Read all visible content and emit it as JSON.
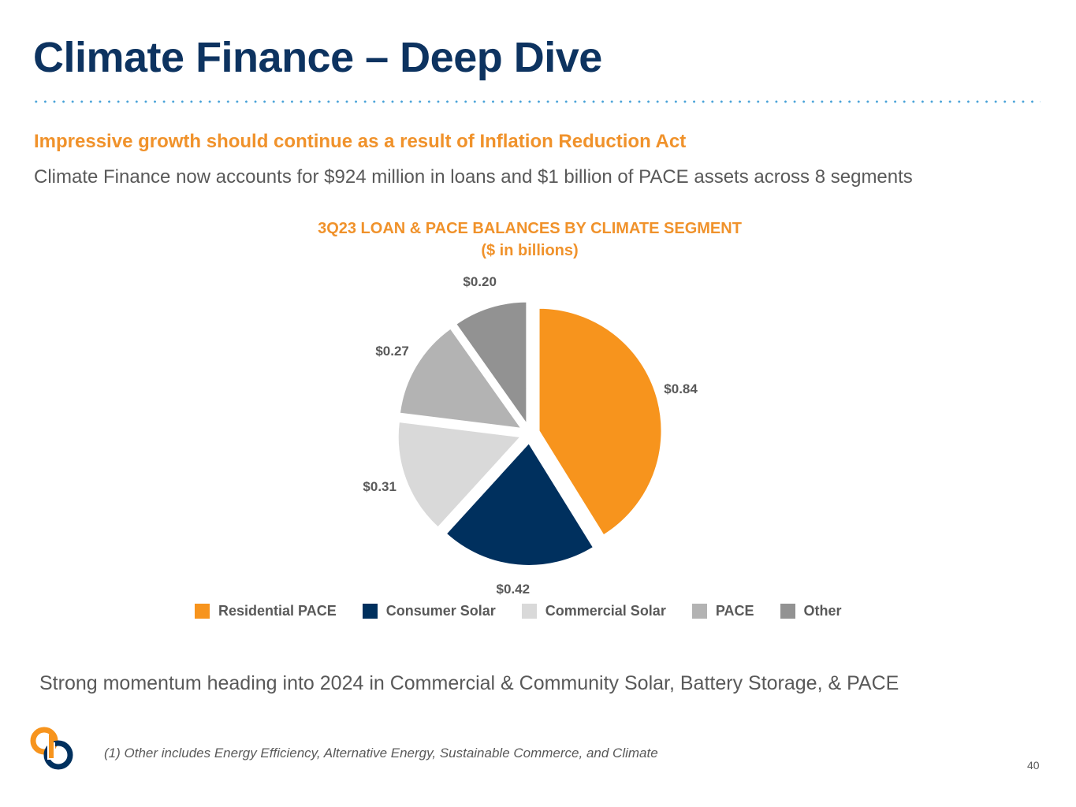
{
  "slide": {
    "title": "Climate Finance – Deep Dive",
    "subtitle": "Impressive growth should continue as a result of Inflation Reduction Act",
    "lead": "Climate Finance now accounts for $924 million in loans and $1 billion of PACE assets across 8 segments",
    "closing": "Strong momentum heading into 2024 in Commercial & Community Solar, Battery Storage, & PACE",
    "footnote": "(1) Other includes Energy Efficiency, Alternative Energy, Sustainable Commerce, and Climate",
    "page_number": "40"
  },
  "chart_data": {
    "type": "pie",
    "title": "3Q23 LOAN & PACE BALANCES BY CLIMATE SEGMENT",
    "subtitle": "($ in billions)",
    "legend_position": "bottom",
    "slices": [
      {
        "name": "Residential PACE",
        "value": 0.84,
        "label": "$0.84",
        "color": "#f7941d"
      },
      {
        "name": "Consumer Solar",
        "value": 0.42,
        "label": "$0.42",
        "color": "#00305e"
      },
      {
        "name": "Commercial Solar",
        "value": 0.31,
        "label": "$0.31",
        "color": "#d9d9d9"
      },
      {
        "name": "PACE",
        "value": 0.27,
        "label": "$0.27",
        "color": "#b3b3b3"
      },
      {
        "name": "Other",
        "value": 0.2,
        "label": "$0.20",
        "color": "#929292"
      }
    ]
  },
  "logo": {
    "colors": {
      "orange": "#f7941d",
      "navy": "#00305e"
    }
  }
}
